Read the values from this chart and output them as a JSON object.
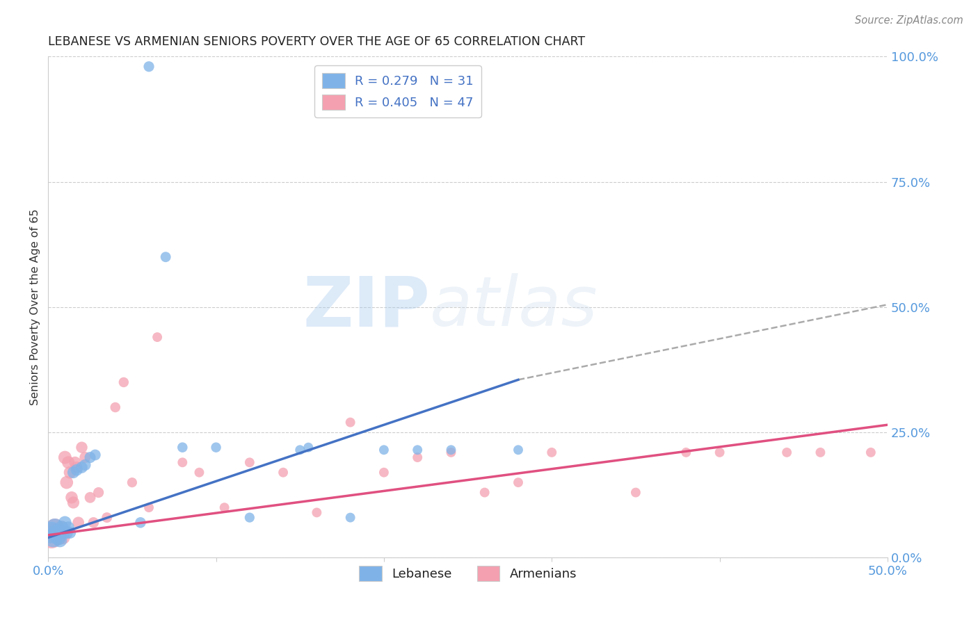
{
  "title": "LEBANESE VS ARMENIAN SENIORS POVERTY OVER THE AGE OF 65 CORRELATION CHART",
  "source": "Source: ZipAtlas.com",
  "ylabel": "Seniors Poverty Over the Age of 65",
  "xlim": [
    0.0,
    0.5
  ],
  "ylim": [
    0.0,
    1.0
  ],
  "xticks": [
    0.0,
    0.1,
    0.2,
    0.3,
    0.4,
    0.5
  ],
  "xtick_labels": [
    "0.0%",
    "",
    "",
    "",
    "",
    "50.0%"
  ],
  "ytick_labels_right": [
    "100.0%",
    "75.0%",
    "50.0%",
    "25.0%",
    "0.0%"
  ],
  "yticks_right": [
    1.0,
    0.75,
    0.5,
    0.25,
    0.0
  ],
  "grid_color": "#cccccc",
  "background_color": "#ffffff",
  "watermark_zip": "ZIP",
  "watermark_atlas": "atlas",
  "lebanese_color": "#7fb3e8",
  "armenian_color": "#f4a0b0",
  "lebanese_line_color": "#4472c4",
  "armenian_line_color": "#e05080",
  "dashed_line_color": "#aaaaaa",
  "legend_R_lebanese": "0.279",
  "legend_N_lebanese": "31",
  "legend_R_armenian": "0.405",
  "legend_N_armenian": "47",
  "leb_line_x0": 0.0,
  "leb_line_y0": 0.04,
  "leb_line_x1": 0.28,
  "leb_line_y1": 0.355,
  "dash_line_x0": 0.28,
  "dash_line_y0": 0.355,
  "dash_line_x1": 0.5,
  "dash_line_y1": 0.505,
  "arm_line_x0": 0.0,
  "arm_line_y0": 0.045,
  "arm_line_x1": 0.5,
  "arm_line_y1": 0.265,
  "lebanese_x": [
    0.002,
    0.003,
    0.004,
    0.005,
    0.006,
    0.007,
    0.008,
    0.009,
    0.01,
    0.011,
    0.012,
    0.013,
    0.015,
    0.017,
    0.02,
    0.022,
    0.025,
    0.028,
    0.055,
    0.06,
    0.07,
    0.08,
    0.1,
    0.12,
    0.15,
    0.155,
    0.18,
    0.2,
    0.22,
    0.24,
    0.28
  ],
  "lebanese_y": [
    0.05,
    0.04,
    0.06,
    0.05,
    0.04,
    0.035,
    0.06,
    0.05,
    0.07,
    0.05,
    0.06,
    0.05,
    0.17,
    0.175,
    0.18,
    0.185,
    0.2,
    0.205,
    0.07,
    0.98,
    0.6,
    0.22,
    0.22,
    0.08,
    0.215,
    0.22,
    0.08,
    0.215,
    0.215,
    0.215,
    0.215
  ],
  "armenian_x": [
    0.002,
    0.003,
    0.004,
    0.005,
    0.006,
    0.007,
    0.008,
    0.009,
    0.01,
    0.011,
    0.012,
    0.013,
    0.014,
    0.015,
    0.016,
    0.017,
    0.018,
    0.02,
    0.022,
    0.025,
    0.027,
    0.03,
    0.035,
    0.04,
    0.045,
    0.05,
    0.06,
    0.065,
    0.08,
    0.09,
    0.105,
    0.12,
    0.14,
    0.16,
    0.18,
    0.2,
    0.22,
    0.24,
    0.26,
    0.28,
    0.3,
    0.35,
    0.38,
    0.4,
    0.44,
    0.46,
    0.49
  ],
  "armenian_y": [
    0.04,
    0.05,
    0.06,
    0.05,
    0.04,
    0.05,
    0.06,
    0.04,
    0.2,
    0.15,
    0.19,
    0.17,
    0.12,
    0.11,
    0.19,
    0.18,
    0.07,
    0.22,
    0.2,
    0.12,
    0.07,
    0.13,
    0.08,
    0.3,
    0.35,
    0.15,
    0.1,
    0.44,
    0.19,
    0.17,
    0.1,
    0.19,
    0.17,
    0.09,
    0.27,
    0.17,
    0.2,
    0.21,
    0.13,
    0.15,
    0.21,
    0.13,
    0.21,
    0.21,
    0.21,
    0.21,
    0.21
  ],
  "leb_marker_sizes": [
    500,
    400,
    350,
    300,
    250,
    220,
    200,
    190,
    180,
    170,
    160,
    155,
    150,
    148,
    145,
    140,
    135,
    130,
    125,
    120,
    115,
    110,
    108,
    105,
    100,
    100,
    100,
    100,
    100,
    100,
    100
  ],
  "arm_marker_sizes": [
    500,
    400,
    350,
    300,
    250,
    220,
    200,
    190,
    185,
    180,
    170,
    165,
    160,
    155,
    150,
    148,
    145,
    140,
    135,
    130,
    125,
    120,
    115,
    110,
    108,
    105,
    100,
    100,
    100,
    100,
    100,
    100,
    100,
    100,
    100,
    100,
    100,
    100,
    100,
    100,
    100,
    100,
    100,
    100,
    100,
    100,
    100
  ]
}
